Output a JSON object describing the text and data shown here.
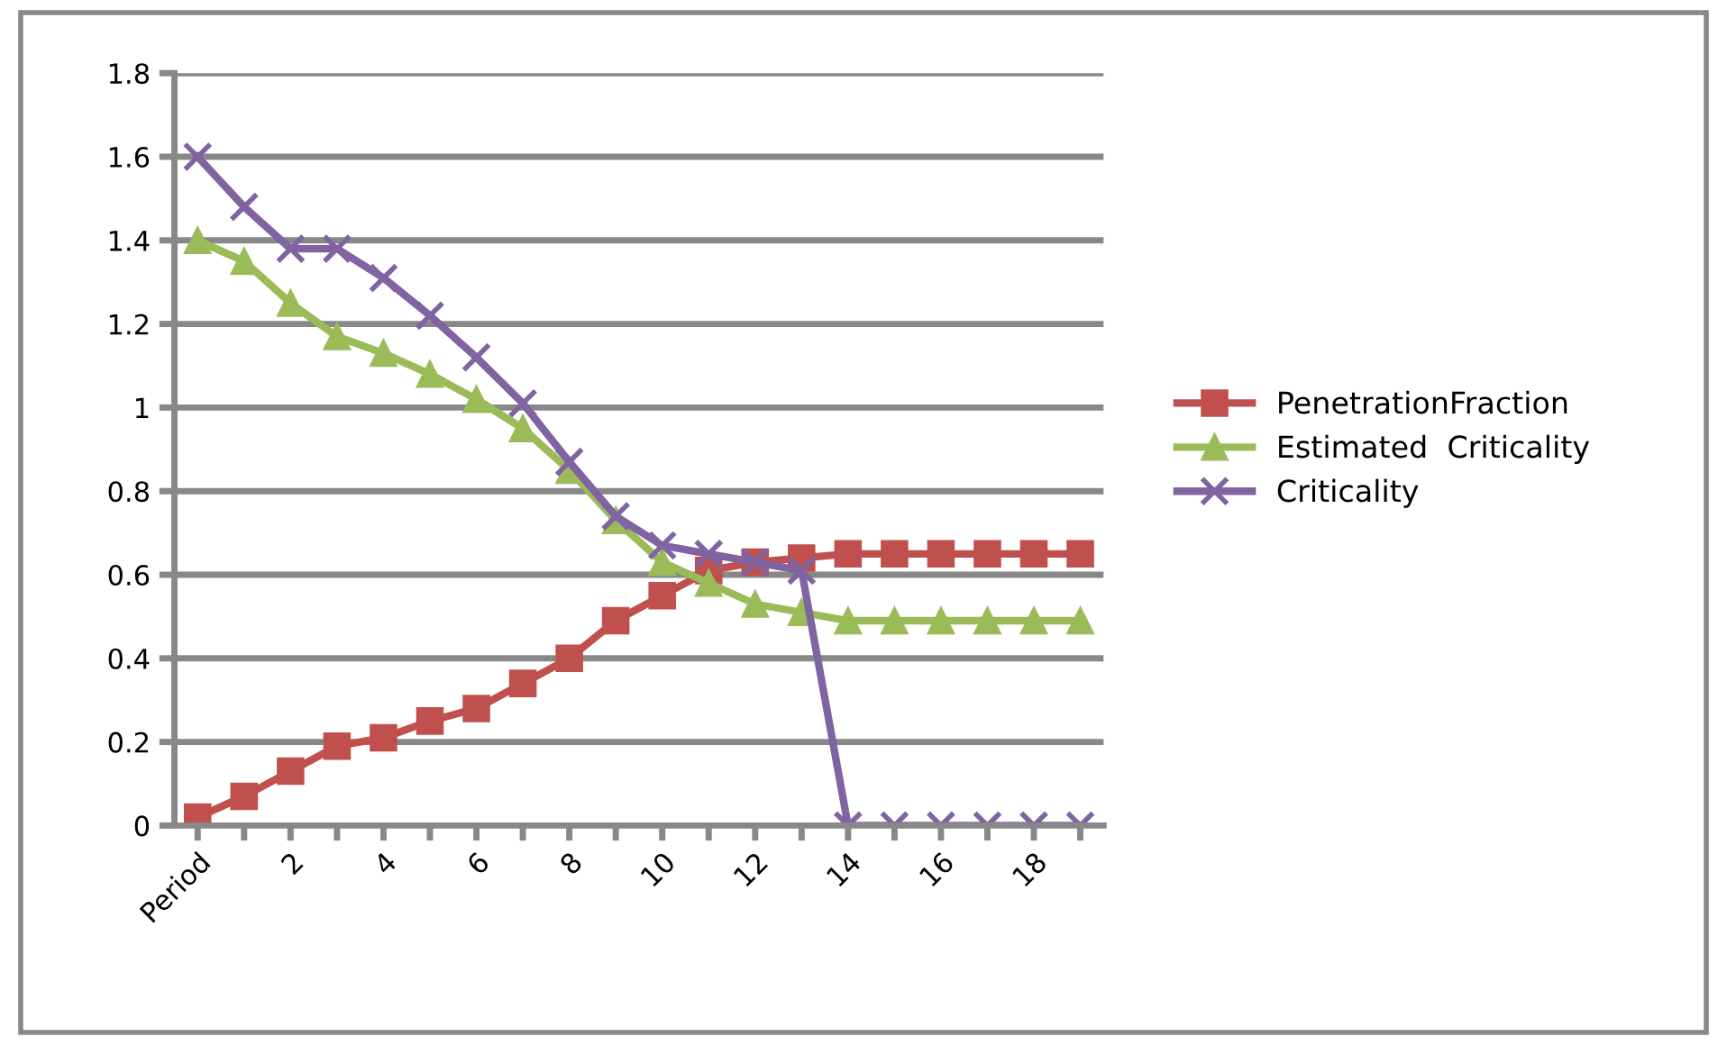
{
  "chart_data": {
    "type": "line",
    "categories": [
      "Period",
      null,
      "2",
      null,
      "4",
      null,
      "6",
      null,
      "8",
      null,
      "10",
      null,
      "12",
      null,
      "14",
      null,
      "16",
      null,
      "18",
      null
    ],
    "series": [
      {
        "name": "PenetrationFraction",
        "color": "#c0504d",
        "marker": "square",
        "values": [
          0.02,
          0.07,
          0.13,
          0.19,
          0.21,
          0.25,
          0.28,
          0.34,
          0.4,
          0.49,
          0.55,
          0.61,
          0.63,
          0.64,
          0.65,
          0.65,
          0.65,
          0.65,
          0.65,
          0.65
        ]
      },
      {
        "name": "Estimated  Criticality",
        "color": "#9bbb59",
        "marker": "triangle",
        "values": [
          1.4,
          1.35,
          1.25,
          1.17,
          1.13,
          1.08,
          1.02,
          0.95,
          0.85,
          0.73,
          0.63,
          0.58,
          0.53,
          0.51,
          0.49,
          0.49,
          0.49,
          0.49,
          0.49,
          0.49
        ]
      },
      {
        "name": "Criticality",
        "color": "#8064a2",
        "marker": "cross",
        "values": [
          1.6,
          1.48,
          1.38,
          1.38,
          1.31,
          1.22,
          1.12,
          1.01,
          0.87,
          0.74,
          0.67,
          0.65,
          0.63,
          0.61,
          0,
          0,
          0,
          0,
          0,
          0
        ]
      }
    ],
    "ylim": [
      0,
      1.8
    ],
    "yticks": [
      0,
      0.2,
      0.4,
      0.6,
      0.8,
      1,
      1.2,
      1.4,
      1.6,
      1.8
    ],
    "grid": "y",
    "legend": "right",
    "line_style": "solid"
  }
}
